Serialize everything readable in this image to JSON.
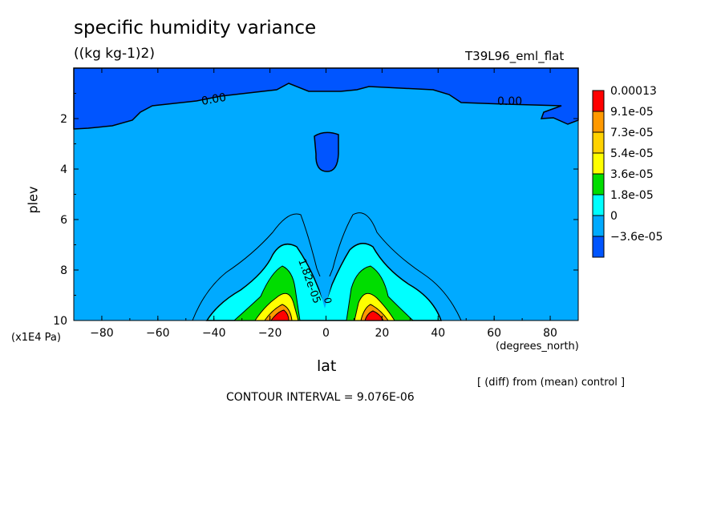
{
  "chart_data": {
    "type": "contour",
    "title": "specific humidity variance",
    "units_label": "((kg kg-1)2)",
    "run_label": "T39L96_eml_flat",
    "xlabel": "lat",
    "x_unit_label": "(degrees_north)",
    "ylabel": "plev",
    "y_unit_label": "(x1E4 Pa)",
    "xlim": [
      -90,
      90
    ],
    "ylim": [
      10,
      0
    ],
    "x_ticks": [
      "-80",
      "-60",
      "-40",
      "-20",
      "0",
      "20",
      "40",
      "60",
      "80"
    ],
    "y_ticks": [
      "2",
      "4",
      "6",
      "8",
      "10"
    ],
    "legend_levels": [
      "0.00013",
      "9.1e-05",
      "7.3e-05",
      "5.4e-05",
      "3.6e-05",
      "1.8e-05",
      "0",
      "-3.6e-05"
    ],
    "legend_colors": [
      "#ff0000",
      "#ff9900",
      "#ffd200",
      "#ffff00",
      "#00dd00",
      "#00ffff",
      "#00aaff",
      "#0055ff"
    ],
    "contour_labels": [
      "0.00",
      "0.00",
      "1.82e-05",
      "0"
    ],
    "note": "[ (diff) from (mean) control ]",
    "contour_interval": "CONTOUR INTERVAL = 9.076E-06"
  },
  "colors": {
    "deep_blue": "#0055ff",
    "mid_blue": "#00aaff",
    "cyan": "#00ffff",
    "green": "#00dd00",
    "yellow": "#ffff00",
    "orange": "#ff9900",
    "red": "#ff0000"
  }
}
